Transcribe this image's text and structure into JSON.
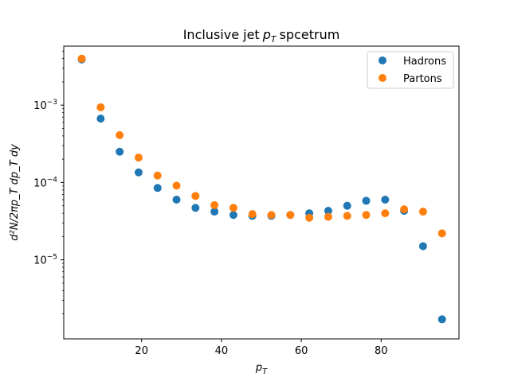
{
  "chart_data": {
    "type": "scatter",
    "title": "Inclusive jet",
    "title_var": "p",
    "title_sub": "T",
    "title_rest": "spcetrum",
    "xlabel": "p",
    "xlabel_sub": "T",
    "ylabel": "d²N/2πp_T dp_T dy",
    "yscale": "log",
    "xlim": [
      0.5,
      99.5
    ],
    "ylim": [
      9.5e-07,
      0.0058
    ],
    "x_ticks": [
      20,
      40,
      60,
      80
    ],
    "x_tick_labels": [
      "20",
      "40",
      "60",
      "80"
    ],
    "y_ticks": [
      1e-05,
      0.0001,
      0.001
    ],
    "y_tick_labels": [
      {
        "base": "10",
        "exp": "−5"
      },
      {
        "base": "10",
        "exp": "−4"
      },
      {
        "base": "10",
        "exp": "−3"
      }
    ],
    "legend_position": "top-right",
    "grid": false,
    "series": [
      {
        "name": "Hadrons",
        "color": "#1f77b4",
        "x": [
          5,
          9.75,
          14.5,
          19.25,
          24,
          28.75,
          33.5,
          38.25,
          43,
          47.75,
          52.5,
          57.25,
          62,
          66.75,
          71.5,
          76.25,
          81,
          85.75,
          90.5,
          95.25
        ],
        "y": [
          0.0039,
          0.00067,
          0.00025,
          0.000135,
          8.5e-05,
          6e-05,
          4.7e-05,
          4.2e-05,
          3.8e-05,
          3.7e-05,
          3.7e-05,
          3.8e-05,
          4e-05,
          4.3e-05,
          5e-05,
          5.8e-05,
          6e-05,
          4.3e-05,
          1.5e-05,
          1.7e-06
        ]
      },
      {
        "name": "Partons",
        "color": "#ff7f0e",
        "x": [
          5,
          9.75,
          14.5,
          19.25,
          24,
          28.75,
          33.5,
          38.25,
          43,
          47.75,
          52.5,
          57.25,
          62,
          66.75,
          71.5,
          76.25,
          81,
          85.75,
          90.5,
          95.25
        ],
        "y": [
          0.004,
          0.00094,
          0.00041,
          0.00021,
          0.000123,
          9.1e-05,
          6.7e-05,
          5.1e-05,
          4.7e-05,
          3.9e-05,
          3.8e-05,
          3.8e-05,
          3.5e-05,
          3.6e-05,
          3.7e-05,
          3.8e-05,
          4e-05,
          4.5e-05,
          4.2e-05,
          2.2e-05
        ]
      }
    ]
  }
}
